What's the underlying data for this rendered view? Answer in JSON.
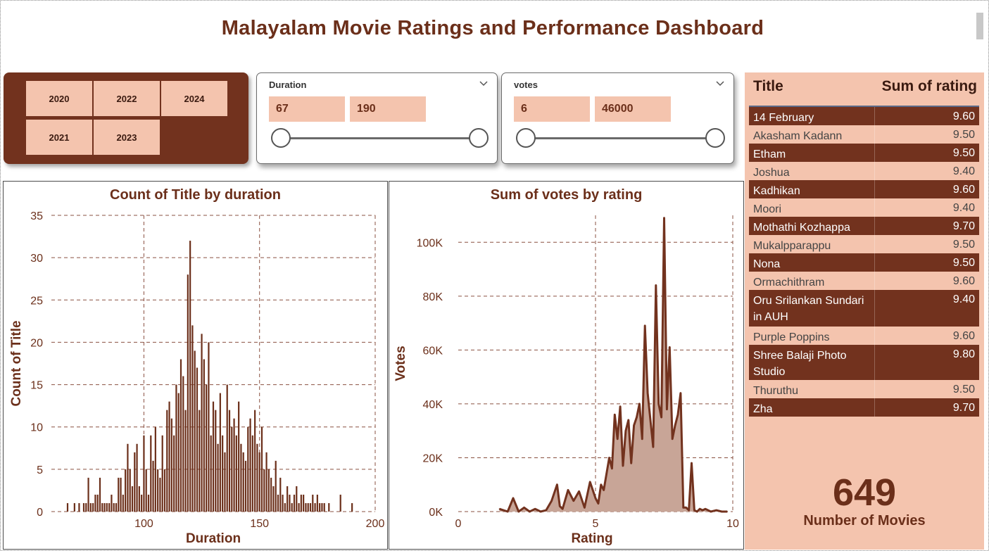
{
  "dashboard_title": "Malayalam Movie Ratings and Performance Dashboard",
  "colors": {
    "brand": "#72321e",
    "peach": "#f4c4ae"
  },
  "year_slicer": {
    "years": [
      "2020",
      "2022",
      "2024",
      "2021",
      "2023"
    ]
  },
  "duration_slicer": {
    "label": "Duration",
    "min": "67",
    "max": "190",
    "icon": "chevron-down-icon"
  },
  "votes_slicer": {
    "label": "votes",
    "min": "6",
    "max": "46000",
    "icon": "chevron-down-icon"
  },
  "table": {
    "header_title": "Title",
    "header_value": "Sum of rating",
    "rows": [
      {
        "title": "14 February",
        "rating": "9.60"
      },
      {
        "title": "Akasham Kadann",
        "rating": "9.50"
      },
      {
        "title": "Etham",
        "rating": "9.50"
      },
      {
        "title": "Joshua",
        "rating": "9.40"
      },
      {
        "title": "Kadhikan",
        "rating": "9.60"
      },
      {
        "title": "Moori",
        "rating": "9.40"
      },
      {
        "title": "Mothathi Kozhappa",
        "rating": "9.70"
      },
      {
        "title": "Mukalpparappu",
        "rating": "9.50"
      },
      {
        "title": "Nona",
        "rating": "9.50"
      },
      {
        "title": "Ormachithram",
        "rating": "9.60"
      },
      {
        "title": "Oru Srilankan Sundari in AUH",
        "rating": "9.40"
      },
      {
        "title": "Purple Poppins",
        "rating": "9.60"
      },
      {
        "title": "Shree Balaji Photo Studio",
        "rating": "9.80"
      },
      {
        "title": "Thuruthu",
        "rating": "9.50"
      },
      {
        "title": "Zha",
        "rating": "9.70"
      }
    ]
  },
  "kpi": {
    "value": "649",
    "label": "Number of Movies"
  },
  "chart_data": [
    {
      "type": "bar",
      "title": "Count of Title by duration",
      "xlabel": "Duration",
      "ylabel": "Count of Title",
      "xlim": [
        60,
        200
      ],
      "ylim": [
        0,
        35
      ],
      "x_ticks": [
        "100",
        "150",
        "200"
      ],
      "y_ticks": [
        "0",
        "5",
        "10",
        "15",
        "20",
        "25",
        "30",
        "35"
      ],
      "grid": true,
      "x": [
        67,
        70,
        72,
        74,
        75,
        76,
        77,
        78,
        79,
        80,
        81,
        82,
        83,
        84,
        85,
        86,
        87,
        88,
        89,
        90,
        91,
        92,
        93,
        94,
        95,
        96,
        97,
        98,
        99,
        100,
        101,
        102,
        103,
        104,
        105,
        106,
        107,
        108,
        109,
        110,
        111,
        112,
        113,
        114,
        115,
        116,
        117,
        118,
        119,
        120,
        121,
        122,
        123,
        124,
        125,
        126,
        127,
        128,
        129,
        130,
        131,
        132,
        133,
        134,
        135,
        136,
        137,
        138,
        139,
        140,
        141,
        142,
        143,
        144,
        145,
        146,
        147,
        148,
        149,
        150,
        151,
        152,
        153,
        154,
        155,
        156,
        157,
        158,
        159,
        160,
        161,
        162,
        163,
        164,
        165,
        166,
        167,
        168,
        169,
        170,
        171,
        172,
        173,
        174,
        175,
        176,
        177,
        178,
        180,
        185,
        190
      ],
      "values": [
        1,
        1,
        1,
        1,
        1,
        4,
        1,
        1,
        2,
        2,
        4,
        1,
        1,
        1,
        1,
        2,
        1,
        1,
        4,
        4,
        2,
        5,
        8,
        5,
        3,
        7,
        8,
        3,
        2,
        9,
        5,
        2,
        9,
        6,
        10,
        5,
        4,
        9,
        5,
        12,
        13,
        11,
        9,
        15,
        14,
        18,
        16,
        12,
        28,
        32,
        22,
        19,
        17,
        12,
        21,
        18,
        15,
        20,
        9,
        13,
        12,
        8,
        14,
        9,
        7,
        15,
        12,
        10,
        11,
        9,
        13,
        8,
        7,
        6,
        10,
        11,
        9,
        12,
        8,
        7,
        10,
        5,
        7,
        5,
        4,
        3,
        6,
        2,
        4,
        2,
        1,
        3,
        2,
        1,
        2,
        3,
        1,
        2,
        2,
        1,
        1,
        1,
        2,
        1,
        2,
        1,
        1,
        1,
        1,
        2,
        1
      ]
    },
    {
      "type": "area",
      "title": "Sum of votes by rating",
      "xlabel": "Rating",
      "ylabel": "Votes",
      "xlim": [
        0,
        10
      ],
      "ylim": [
        0,
        110000
      ],
      "x_ticks": [
        "0",
        "5",
        "10"
      ],
      "y_ticks": [
        "0K",
        "20K",
        "40K",
        "60K",
        "80K",
        "100K"
      ],
      "grid": true,
      "x": [
        1.5,
        1.8,
        2.0,
        2.2,
        2.4,
        2.6,
        2.8,
        3.0,
        3.2,
        3.4,
        3.6,
        3.7,
        3.8,
        4.0,
        4.2,
        4.4,
        4.6,
        4.8,
        5.0,
        5.1,
        5.2,
        5.3,
        5.4,
        5.5,
        5.6,
        5.7,
        5.8,
        5.9,
        6.0,
        6.1,
        6.2,
        6.3,
        6.4,
        6.5,
        6.6,
        6.7,
        6.8,
        6.9,
        7.0,
        7.1,
        7.2,
        7.3,
        7.4,
        7.5,
        7.6,
        7.7,
        7.8,
        7.9,
        8.0,
        8.1,
        8.2,
        8.3,
        8.4,
        8.5,
        8.6,
        8.7,
        8.8,
        8.9,
        9.0,
        9.2,
        9.4,
        9.6,
        9.8
      ],
      "values": [
        1000,
        0,
        5000,
        0,
        1500,
        0,
        1000,
        0,
        500,
        4000,
        10000,
        2000,
        1000,
        8000,
        4000,
        7500,
        1500,
        11000,
        5000,
        3000,
        10000,
        8000,
        14000,
        20000,
        16000,
        36000,
        27000,
        39000,
        17000,
        30000,
        34000,
        18000,
        32000,
        35000,
        40000,
        27000,
        69000,
        44000,
        34000,
        24000,
        84000,
        40000,
        35000,
        109000,
        38000,
        61000,
        27000,
        32000,
        36000,
        44000,
        1500,
        1500,
        500,
        18000,
        500,
        0,
        1000,
        500,
        1000,
        0,
        500,
        0,
        0
      ]
    }
  ]
}
